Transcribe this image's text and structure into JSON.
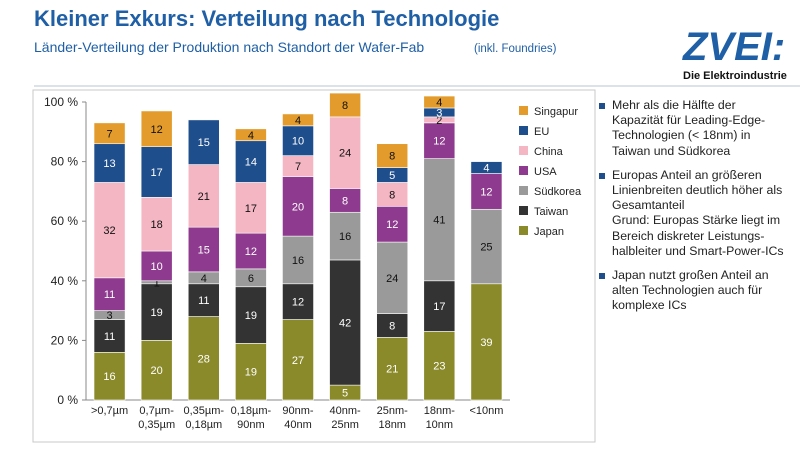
{
  "header": {
    "title": "Kleiner Exkurs: Verteilung nach Technologie",
    "subtitle": "Länder-Verteilung der Produktion nach Standort der Wafer-Fab",
    "subtitle_note": "(inkl. Foundries)",
    "logo": "ZVEI:",
    "logo_tagline": "Die Elektroindustrie"
  },
  "chart_data": {
    "type": "stacked_bar",
    "categories": [
      ">0,7µm",
      "0,7µm-0,35µm",
      "0,35µm-0,18µm",
      "0,18µm-90nm",
      "90nm-40nm",
      "40nm-25nm",
      "25nm-18nm",
      "18nm-10nm",
      "<10nm"
    ],
    "ylim": [
      0,
      100
    ],
    "yticks": [
      {
        "value": 0,
        "label": "0 %"
      },
      {
        "value": 20,
        "label": "20 %"
      },
      {
        "value": 40,
        "label": "40 %"
      },
      {
        "value": 60,
        "label": "60 %"
      },
      {
        "value": 80,
        "label": "80 %"
      },
      {
        "value": 100,
        "label": "100 %"
      }
    ],
    "legend": "top-right",
    "series": [
      {
        "name": "Japan",
        "color": "#8a8a2a",
        "values": [
          16,
          20,
          28,
          19,
          27,
          5,
          21,
          23,
          39
        ]
      },
      {
        "name": "Taiwan",
        "color": "#333333",
        "values": [
          11,
          19,
          11,
          19,
          12,
          42,
          8,
          17,
          null
        ]
      },
      {
        "name": "Südkorea",
        "color": "#9a9a9a",
        "values": [
          3,
          1,
          4,
          6,
          16,
          16,
          24,
          41,
          25
        ]
      },
      {
        "name": "USA",
        "color": "#8e3a8e",
        "values": [
          11,
          10,
          15,
          12,
          20,
          8,
          12,
          12,
          12
        ]
      },
      {
        "name": "China",
        "color": "#f4b6c2",
        "values": [
          32,
          18,
          21,
          17,
          7,
          24,
          8,
          2,
          null
        ]
      },
      {
        "name": "EU",
        "color": "#1f4e8c",
        "values": [
          13,
          17,
          15,
          14,
          10,
          null,
          5,
          3,
          4
        ]
      },
      {
        "name": "Singapur",
        "color": "#e39b2c",
        "values": [
          7,
          12,
          null,
          4,
          4,
          8,
          8,
          4,
          null
        ]
      }
    ]
  },
  "bullets": [
    {
      "lines": [
        "Mehr als die Hälfte der",
        "Kapazität für Leading-Edge-",
        "Technologien (< 18nm) in",
        "Taiwan und Südkorea"
      ]
    },
    {
      "lines": [
        "Europas Anteil an größeren",
        "Linienbreiten deutlich höher als",
        "Gesamtanteil",
        "Grund: Europas Stärke liegt im",
        "Bereich diskreter Leistungs-",
        "halbleiter und Smart-Power-ICs"
      ]
    },
    {
      "lines": [
        "Japan nutzt großen Anteil an",
        "alten Technologien auch für",
        "komplexe ICs"
      ]
    }
  ]
}
